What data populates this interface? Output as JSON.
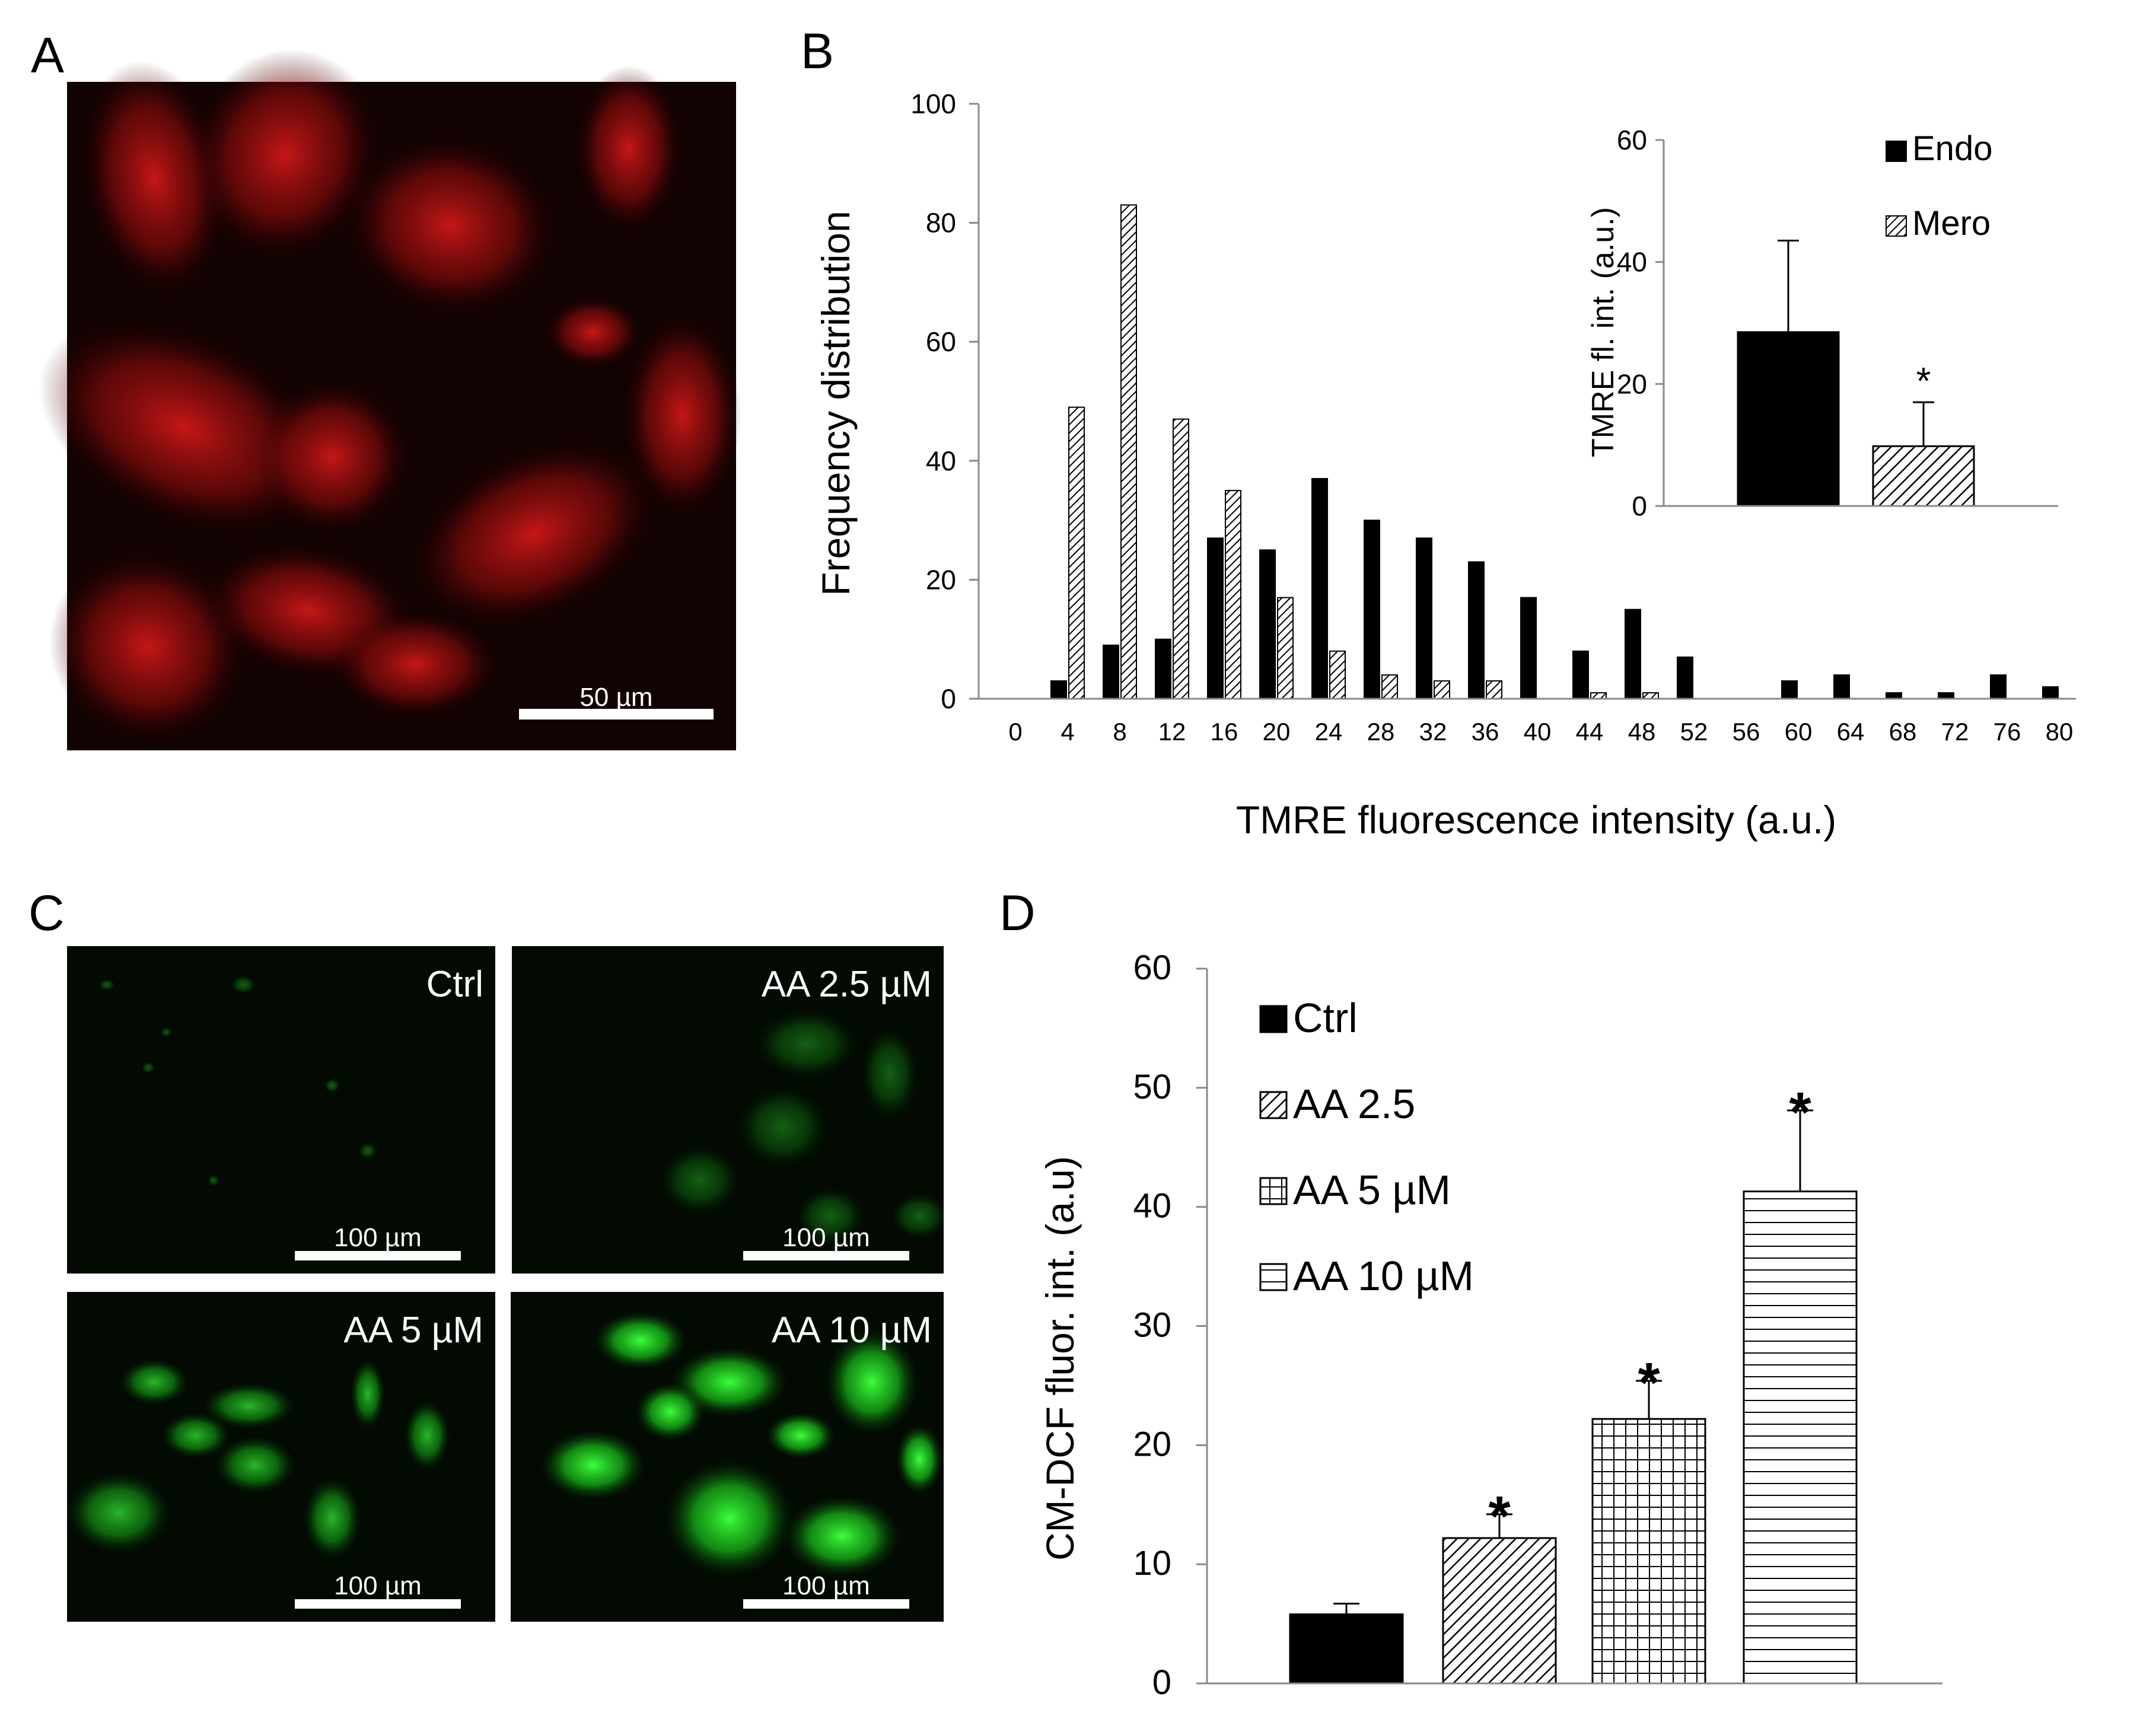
{
  "panels": {
    "A": {
      "label": "A",
      "scale_bar": "50 µm",
      "color": "#cc1010"
    },
    "C": {
      "label": "C",
      "scale_bar": "100 µm",
      "color": "#22cc22",
      "images": [
        {
          "label": "Ctrl",
          "intensity": 0.12
        },
        {
          "label": "AA 2.5 µM",
          "intensity": 0.35
        },
        {
          "label": "AA 5 µM",
          "intensity": 0.7
        },
        {
          "label": "AA 10 µM",
          "intensity": 1.0
        }
      ]
    },
    "B_label": "B",
    "D_label": "D"
  },
  "chart_data": [
    {
      "id": "B-main",
      "type": "bar",
      "xlabel": "TMRE fluorescence intensity (a.u.)",
      "ylabel": "Frequency distribution",
      "ylim": [
        0,
        100
      ],
      "yticks": [
        0,
        20,
        40,
        60,
        80,
        100
      ],
      "categories": [
        "0",
        "4",
        "8",
        "12",
        "16",
        "20",
        "24",
        "28",
        "32",
        "36",
        "40",
        "44",
        "48",
        "52",
        "56",
        "60",
        "64",
        "68",
        "72",
        "76",
        "80"
      ],
      "series": [
        {
          "name": "Endo",
          "pattern": "solid",
          "values": [
            0,
            3,
            9,
            10,
            27,
            25,
            37,
            30,
            27,
            23,
            17,
            8,
            15,
            7,
            0,
            3,
            4,
            1,
            1,
            4,
            2
          ]
        },
        {
          "name": "Mero",
          "pattern": "diagonal",
          "values": [
            0,
            49,
            83,
            47,
            35,
            17,
            8,
            4,
            3,
            3,
            0,
            1,
            1,
            0,
            0,
            0,
            0,
            0,
            0,
            0,
            0
          ]
        }
      ]
    },
    {
      "id": "B-inset",
      "type": "bar",
      "ylabel": "TMRE fl. int. (a.u.)",
      "ylim": [
        0,
        60
      ],
      "yticks": [
        0,
        20,
        40,
        60
      ],
      "legend": [
        "Endo",
        "Mero"
      ],
      "series": [
        {
          "name": "Endo",
          "pattern": "solid",
          "value": 28.5,
          "error": 15,
          "star": ""
        },
        {
          "name": "Mero",
          "pattern": "diagonal",
          "value": 9.8,
          "error": 7.2,
          "star": "*"
        }
      ]
    },
    {
      "id": "D",
      "type": "bar",
      "ylabel": "CM-DCF fluor. int. (a.u)",
      "ylim": [
        0,
        60
      ],
      "yticks": [
        0,
        10,
        20,
        30,
        40,
        50,
        60
      ],
      "legend": [
        "Ctrl",
        "AA 2.5",
        "AA 5 µM",
        "AA 10 µM"
      ],
      "series": [
        {
          "name": "Ctrl",
          "pattern": "solid",
          "value": 5.8,
          "error": 0.9,
          "star": ""
        },
        {
          "name": "AA 2.5",
          "pattern": "diagonal",
          "value": 12.2,
          "error": 2.0,
          "star": "*"
        },
        {
          "name": "AA 5 µM",
          "pattern": "grid",
          "value": 22.2,
          "error": 3.2,
          "star": "*"
        },
        {
          "name": "AA 10 µM",
          "pattern": "hlines",
          "value": 41.3,
          "error": 6.8,
          "star": "*"
        }
      ]
    }
  ]
}
